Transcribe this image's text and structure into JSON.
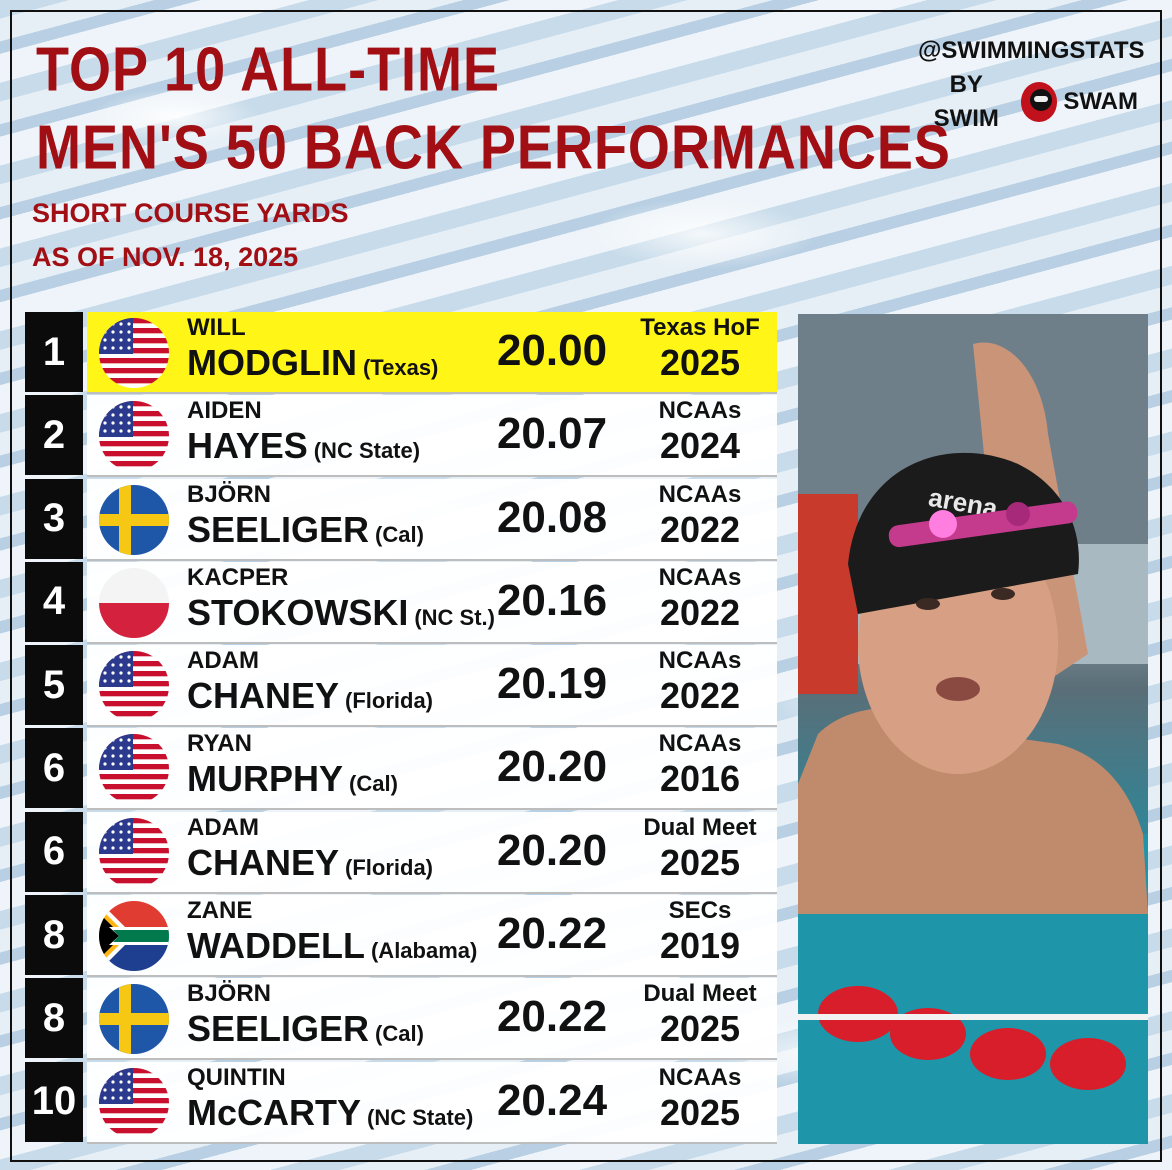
{
  "header": {
    "title_line1": "TOP 10 ALL-TIME",
    "title_line2": "MEN'S 50 BACK PERFORMANCES",
    "subtitle1": "SHORT COURSE YARDS",
    "subtitle2": "AS OF NOV. 18, 2025"
  },
  "brand": {
    "handle": "@SWIMMINGSTATS",
    "by": "BY SWIM",
    "swam": "SWAM"
  },
  "colors": {
    "title_red": "#a10f14",
    "highlight_yellow": "#fff617",
    "rank_box": "#0b0b0b"
  },
  "rows": [
    {
      "rank": "1",
      "first": "WILL",
      "last": "MODGLIN",
      "school": "(Texas)",
      "time": "20.00",
      "meet": "Texas HoF",
      "year": "2025",
      "flag": "usa",
      "highlight": true
    },
    {
      "rank": "2",
      "first": "AIDEN",
      "last": "HAYES",
      "school": "(NC State)",
      "time": "20.07",
      "meet": "NCAAs",
      "year": "2024",
      "flag": "usa"
    },
    {
      "rank": "3",
      "first": "BJÖRN",
      "last": "SEELIGER",
      "school": "(Cal)",
      "time": "20.08",
      "meet": "NCAAs",
      "year": "2022",
      "flag": "sweden"
    },
    {
      "rank": "4",
      "first": "KACPER",
      "last": "STOKOWSKI",
      "school": "(NC St.)",
      "time": "20.16",
      "meet": "NCAAs",
      "year": "2022",
      "flag": "poland"
    },
    {
      "rank": "5",
      "first": "ADAM",
      "last": "CHANEY",
      "school": "(Florida)",
      "time": "20.19",
      "meet": "NCAAs",
      "year": "2022",
      "flag": "usa"
    },
    {
      "rank": "6",
      "first": "RYAN",
      "last": "MURPHY",
      "school": "(Cal)",
      "time": "20.20",
      "meet": "NCAAs",
      "year": "2016",
      "flag": "usa"
    },
    {
      "rank": "6",
      "first": "ADAM",
      "last": "CHANEY",
      "school": "(Florida)",
      "time": "20.20",
      "meet": "Dual Meet",
      "year": "2025",
      "flag": "usa"
    },
    {
      "rank": "8",
      "first": "ZANE",
      "last": "WADDELL",
      "school": "(Alabama)",
      "time": "20.22",
      "meet": "SECs",
      "year": "2019",
      "flag": "south-africa"
    },
    {
      "rank": "8",
      "first": "BJÖRN",
      "last": "SEELIGER",
      "school": "(Cal)",
      "time": "20.22",
      "meet": "Dual Meet",
      "year": "2025",
      "flag": "sweden"
    },
    {
      "rank": "10",
      "first": "QUINTIN",
      "last": "McCARTY",
      "school": "(NC State)",
      "time": "20.24",
      "meet": "NCAAs",
      "year": "2025",
      "flag": "usa"
    }
  ],
  "photo": {
    "cap_text": "arena"
  }
}
